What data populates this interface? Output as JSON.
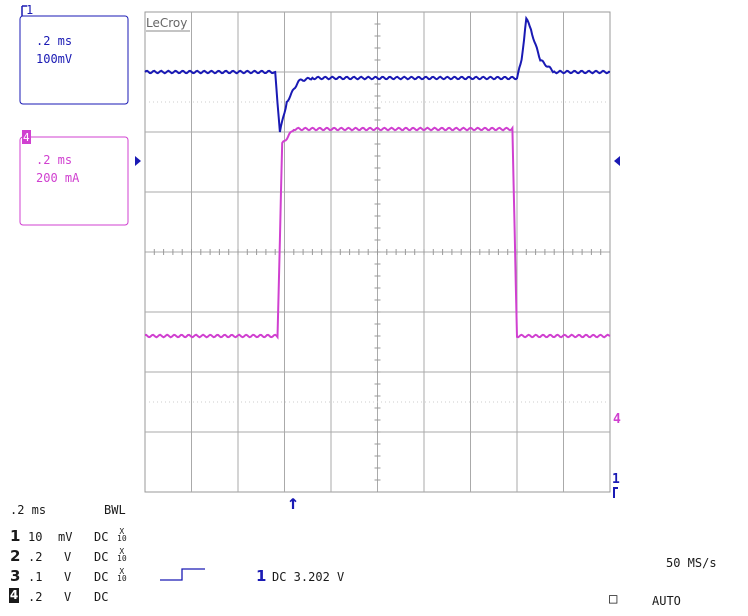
{
  "brand": "LeCroy",
  "channels": [
    {
      "id": "1",
      "timebase": ".2 ms",
      "scale": "100mV",
      "color": "#1a1ab4"
    },
    {
      "id": "4",
      "timebase": ".2 ms",
      "scale": "200 mA",
      "color": "#d040d0"
    }
  ],
  "markers": {
    "ch1_right": "1",
    "ch4_right": "4",
    "trigger_arrow": "↑"
  },
  "bottom": {
    "timebase": ".2 ms",
    "bwl": "BWL",
    "rows": [
      {
        "ch": "1",
        "scale": "10",
        "unit": "mV",
        "coupling": "DC",
        "probe_top": "X",
        "probe_bot": "10"
      },
      {
        "ch": "2",
        "scale": ".2",
        "unit": "V",
        "coupling": "DC",
        "probe_top": "X",
        "probe_bot": "10"
      },
      {
        "ch": "3",
        "scale": ".1",
        "unit": "V",
        "coupling": "DC",
        "probe_top": "X",
        "probe_bot": "10"
      },
      {
        "ch": "4",
        "scale": ".2",
        "unit": "V",
        "coupling": "DC",
        "probe_top": "",
        "probe_bot": ""
      }
    ],
    "trigger_ch": "1",
    "trigger_text": "DC 3.202 V",
    "sample_rate": "50 MS/s",
    "mode": "AUTO",
    "mode_box": "□"
  },
  "chart_data": {
    "type": "line",
    "grid": {
      "divisions_x": 10,
      "divisions_y": 8
    },
    "series": [
      {
        "name": "1",
        "color": "#1a1ab4",
        "points_div": [
          [
            0,
            7.0
          ],
          [
            2.8,
            7.0
          ],
          [
            2.9,
            6.0
          ],
          [
            3.05,
            6.5
          ],
          [
            3.3,
            6.85
          ],
          [
            3.6,
            6.9
          ],
          [
            8.0,
            6.9
          ],
          [
            8.1,
            7.2
          ],
          [
            8.2,
            7.9
          ],
          [
            8.3,
            7.7
          ],
          [
            8.5,
            7.2
          ],
          [
            8.8,
            7.0
          ],
          [
            10,
            7.0
          ]
        ]
      },
      {
        "name": "4",
        "color": "#d040d0",
        "points_div": [
          [
            0,
            2.6
          ],
          [
            2.85,
            2.6
          ],
          [
            2.95,
            5.8
          ],
          [
            3.2,
            6.05
          ],
          [
            7.9,
            6.05
          ],
          [
            8.0,
            2.6
          ],
          [
            10,
            2.6
          ]
        ]
      }
    ]
  }
}
